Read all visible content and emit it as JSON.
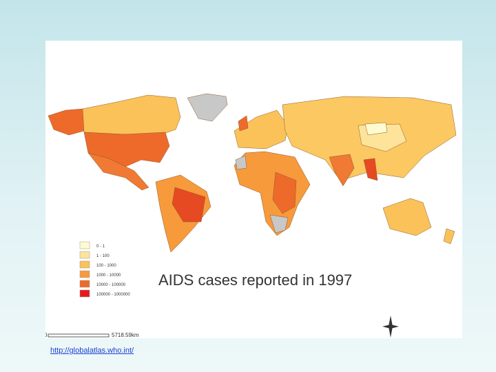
{
  "title": "AIDS cases reported in 1997",
  "legend": [
    {
      "label": "0 - 1",
      "color": "#fffbd0"
    },
    {
      "label": "1 - 100",
      "color": "#fde49a"
    },
    {
      "label": "100 - 1000",
      "color": "#fbc25a"
    },
    {
      "label": "1000 - 10000",
      "color": "#f79a3c"
    },
    {
      "label": "10000 - 100000",
      "color": "#ee6a2b"
    },
    {
      "label": "100000 - 1000000",
      "color": "#e31a1c"
    }
  ],
  "scale": {
    "start": "0",
    "end": "5718.59km"
  },
  "link": "http://globalatlas.who.int/"
}
